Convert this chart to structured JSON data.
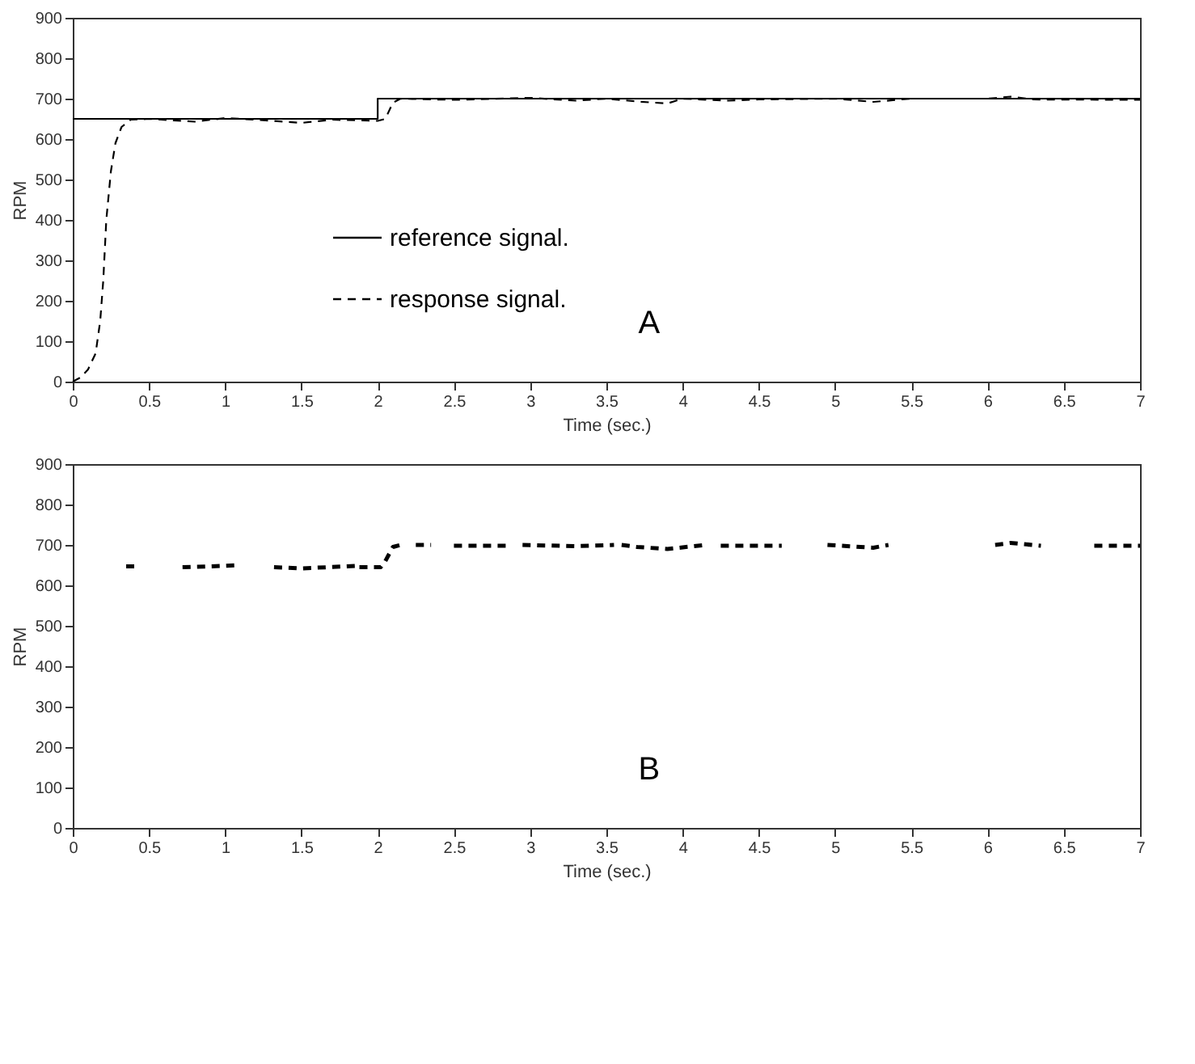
{
  "chart_data": [
    {
      "type": "line",
      "xlabel": "Time (sec.)",
      "ylabel": "RPM",
      "xlim": [
        0,
        7
      ],
      "xticks": [
        0,
        0.5,
        1,
        1.5,
        2,
        2.5,
        3,
        3.5,
        4,
        4.5,
        5,
        5.5,
        6,
        6.5,
        7
      ],
      "ylim": [
        0,
        900
      ],
      "yticks": [
        0,
        100,
        200,
        300,
        400,
        500,
        600,
        700,
        800,
        900
      ],
      "grid": false,
      "legend": "left",
      "annotations": [
        "A"
      ],
      "series": [
        {
          "name": "reference signal.",
          "color": "#000000",
          "line_style": "solid",
          "x": [
            0,
            2,
            2,
            7
          ],
          "values": [
            650,
            650,
            700,
            700
          ]
        },
        {
          "name": "response signal.",
          "color": "#000000",
          "line_style": "dashed",
          "x": [
            0,
            0.05,
            0.1,
            0.15,
            0.18,
            0.2,
            0.22,
            0.25,
            0.28,
            0.32,
            0.38,
            0.5,
            0.8,
            1.0,
            1.2,
            1.5,
            1.7,
            2.0,
            2.05,
            2.1,
            2.15,
            2.5,
            3.0,
            3.3,
            3.5,
            3.7,
            3.9,
            4.0,
            4.3,
            4.5,
            5.0,
            5.25,
            5.5,
            6.0,
            6.15,
            6.3,
            7.0
          ],
          "values": [
            0,
            10,
            30,
            70,
            150,
            250,
            400,
            520,
            590,
            630,
            648,
            650,
            643,
            652,
            648,
            640,
            648,
            645,
            650,
            690,
            700,
            697,
            702,
            695,
            700,
            693,
            688,
            700,
            695,
            698,
            700,
            692,
            700,
            700,
            705,
            698,
            697
          ]
        }
      ]
    },
    {
      "type": "line",
      "xlabel": "Time (sec.)",
      "ylabel": "RPM",
      "xlim": [
        0,
        7
      ],
      "xticks": [
        0,
        0.5,
        1,
        1.5,
        2,
        2.5,
        3,
        3.5,
        4,
        4.5,
        5,
        5.5,
        6,
        6.5,
        7
      ],
      "ylim": [
        0,
        900
      ],
      "yticks": [
        0,
        100,
        200,
        300,
        400,
        500,
        600,
        700,
        800,
        900
      ],
      "grid": false,
      "annotations": [
        "B"
      ],
      "series": [
        {
          "color": "#000000",
          "line_style": "dashed",
          "x": [
            0.35,
            0.41,
            0.5,
            0.72,
            0.9,
            1.1,
            1.2,
            1.32,
            1.5,
            1.85,
            1.87,
            1.88,
            2.02,
            2.05,
            2.1,
            2.15,
            2.2,
            2.25,
            2.35,
            2.4,
            2.5,
            2.85,
            2.9,
            2.95,
            3.3,
            3.55,
            3.57,
            3.6,
            3.7,
            3.9,
            4.15,
            4.2,
            4.25,
            4.65,
            4.8,
            4.95,
            5.25,
            5.35,
            5.5,
            6.05,
            6.15,
            6.35,
            6.5,
            6.7,
            7.0
          ],
          "values": [
            647,
            647,
            null,
            645,
            647,
            650,
            null,
            645,
            642,
            648,
            null,
            645,
            645,
            660,
            695,
            700,
            null,
            700,
            700,
            null,
            698,
            698,
            null,
            700,
            697,
            700,
            null,
            700,
            695,
            690,
            700,
            null,
            698,
            698,
            null,
            700,
            693,
            700,
            null,
            700,
            705,
            698,
            null,
            698,
            698
          ]
        }
      ]
    }
  ]
}
